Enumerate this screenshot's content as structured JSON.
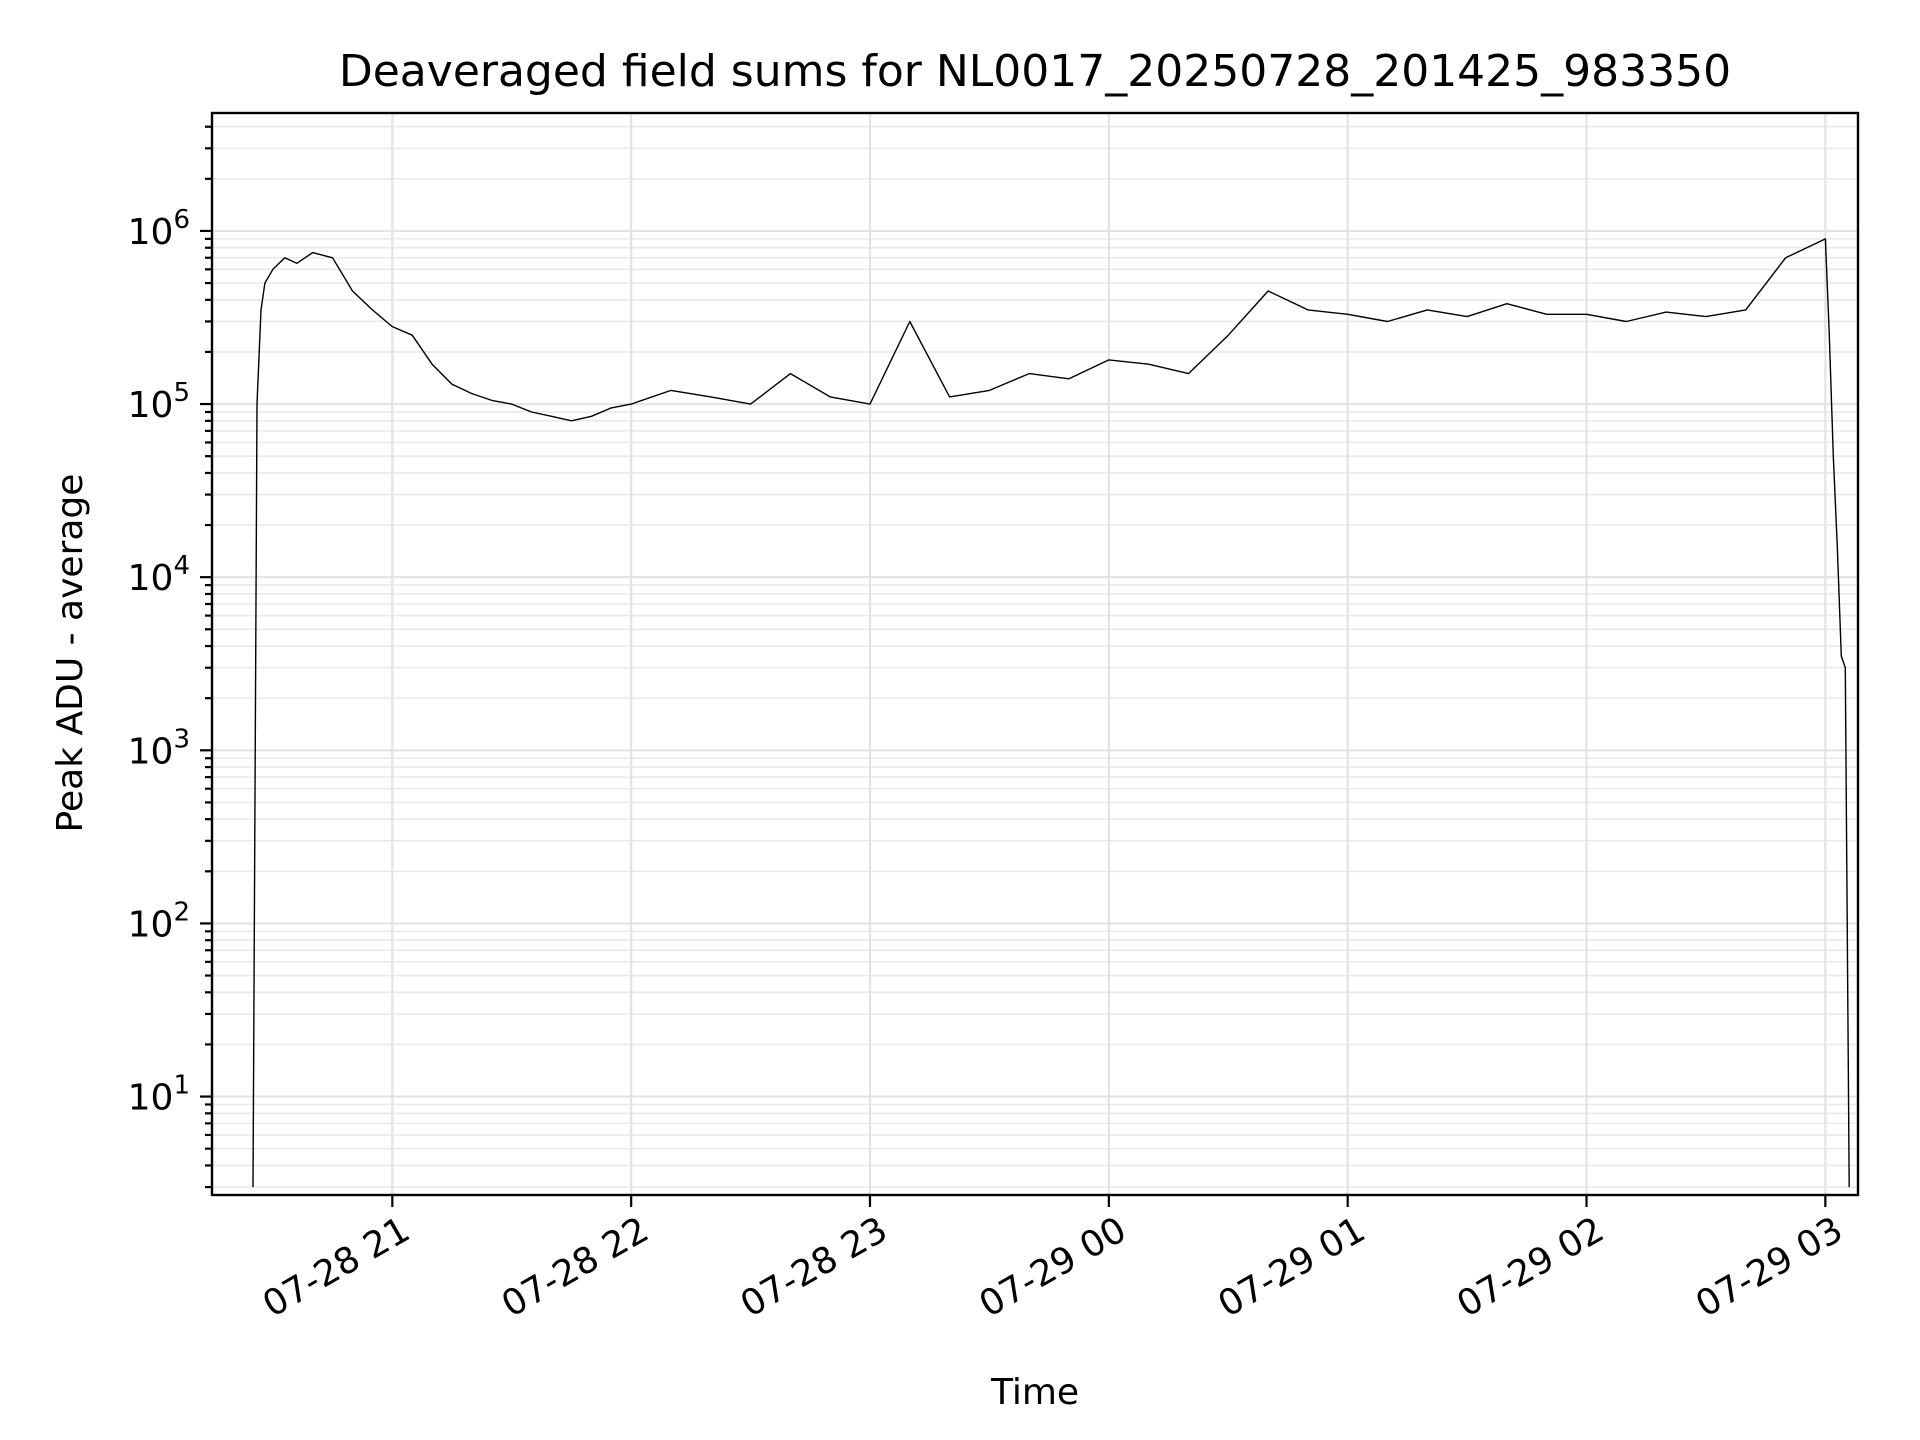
{
  "chart_data": {
    "type": "line",
    "title": "Deaveraged field sums for NL0017_20250728_201425_983350",
    "xlabel": "Time",
    "ylabel": "Peak ADU - average",
    "yscale": "log",
    "ylim": [
      2.7,
      4800000
    ],
    "xlim": [
      "07-28 20:14:42",
      "07-29 03:08:12"
    ],
    "grid": true,
    "x_tick_labels": [
      "07-28 21",
      "07-28 22",
      "07-28 23",
      "07-29 00",
      "07-29 01",
      "07-29 02",
      "07-29 03"
    ],
    "x_ticks": [
      "07-28 21:00",
      "07-28 22:00",
      "07-28 23:00",
      "07-29 00:00",
      "07-29 01:00",
      "07-29 02:00",
      "07-29 03:00"
    ],
    "y_tick_labels": [
      {
        "base": "10",
        "exp": "1",
        "value": 10
      },
      {
        "base": "10",
        "exp": "2",
        "value": 100
      },
      {
        "base": "10",
        "exp": "3",
        "value": 1000
      },
      {
        "base": "10",
        "exp": "4",
        "value": 10000
      },
      {
        "base": "10",
        "exp": "5",
        "value": 100000
      },
      {
        "base": "10",
        "exp": "6",
        "value": 1000000
      }
    ],
    "series": [
      {
        "color": "#000000",
        "x": [
          "07-28 20:25",
          "07-28 20:26",
          "07-28 20:27",
          "07-28 20:28",
          "07-28 20:30",
          "07-28 20:33",
          "07-28 20:36",
          "07-28 20:40",
          "07-28 20:45",
          "07-28 20:50",
          "07-28 20:55",
          "07-28 21:00",
          "07-28 21:05",
          "07-28 21:10",
          "07-28 21:15",
          "07-28 21:20",
          "07-28 21:25",
          "07-28 21:30",
          "07-28 21:35",
          "07-28 21:40",
          "07-28 21:45",
          "07-28 21:50",
          "07-28 21:55",
          "07-28 22:00",
          "07-28 22:10",
          "07-28 22:20",
          "07-28 22:30",
          "07-28 22:40",
          "07-28 22:50",
          "07-28 23:00",
          "07-28 23:10",
          "07-28 23:20",
          "07-28 23:30",
          "07-28 23:40",
          "07-28 23:50",
          "07-29 00:00",
          "07-29 00:10",
          "07-29 00:20",
          "07-29 00:30",
          "07-29 00:40",
          "07-29 00:50",
          "07-29 01:00",
          "07-29 01:10",
          "07-29 01:20",
          "07-29 01:30",
          "07-29 01:40",
          "07-29 01:50",
          "07-29 02:00",
          "07-29 02:10",
          "07-29 02:20",
          "07-29 02:30",
          "07-29 02:40",
          "07-29 02:50",
          "07-29 03:00",
          "07-29 03:01",
          "07-29 03:02",
          "07-29 03:03",
          "07-29 03:04",
          "07-29 03:05",
          "07-29 03:06"
        ],
        "values": [
          3,
          100000,
          350000,
          500000,
          600000,
          700000,
          650000,
          750000,
          700000,
          450000,
          350000,
          280000,
          250000,
          170000,
          130000,
          115000,
          105000,
          100000,
          90000,
          85000,
          80000,
          85000,
          95000,
          100000,
          120000,
          110000,
          100000,
          150000,
          110000,
          100000,
          300000,
          110000,
          120000,
          150000,
          140000,
          180000,
          170000,
          150000,
          250000,
          450000,
          350000,
          330000,
          300000,
          350000,
          320000,
          380000,
          330000,
          330000,
          300000,
          340000,
          320000,
          350000,
          700000,
          900000,
          250000,
          50000,
          15000,
          3500,
          3000,
          3
        ]
      }
    ]
  }
}
